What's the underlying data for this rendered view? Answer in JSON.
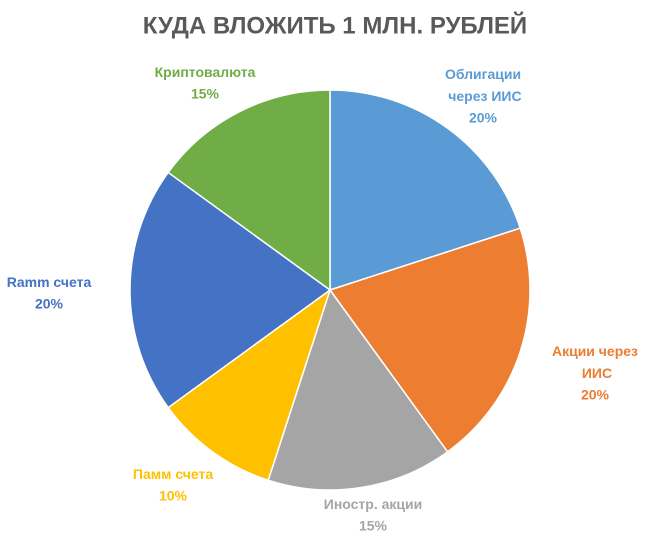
{
  "chart_data": {
    "type": "pie",
    "title": "КУДА ВЛОЖИТЬ 1 МЛН. РУБЛЕЙ",
    "categories": [
      "Облигации через ИИС",
      "Акции через ИИС",
      "Иностр. акции",
      "Памм счета",
      "Ramm счета",
      "Криптовалюта"
    ],
    "values": [
      20,
      20,
      15,
      10,
      20,
      15
    ],
    "value_labels": [
      "20%",
      "20%",
      "15%",
      "10%",
      "20%",
      "15%"
    ],
    "colors": [
      "#5b9bd5",
      "#ed7d31",
      "#a5a5a5",
      "#ffc000",
      "#4472c4",
      "#70ad47"
    ]
  }
}
